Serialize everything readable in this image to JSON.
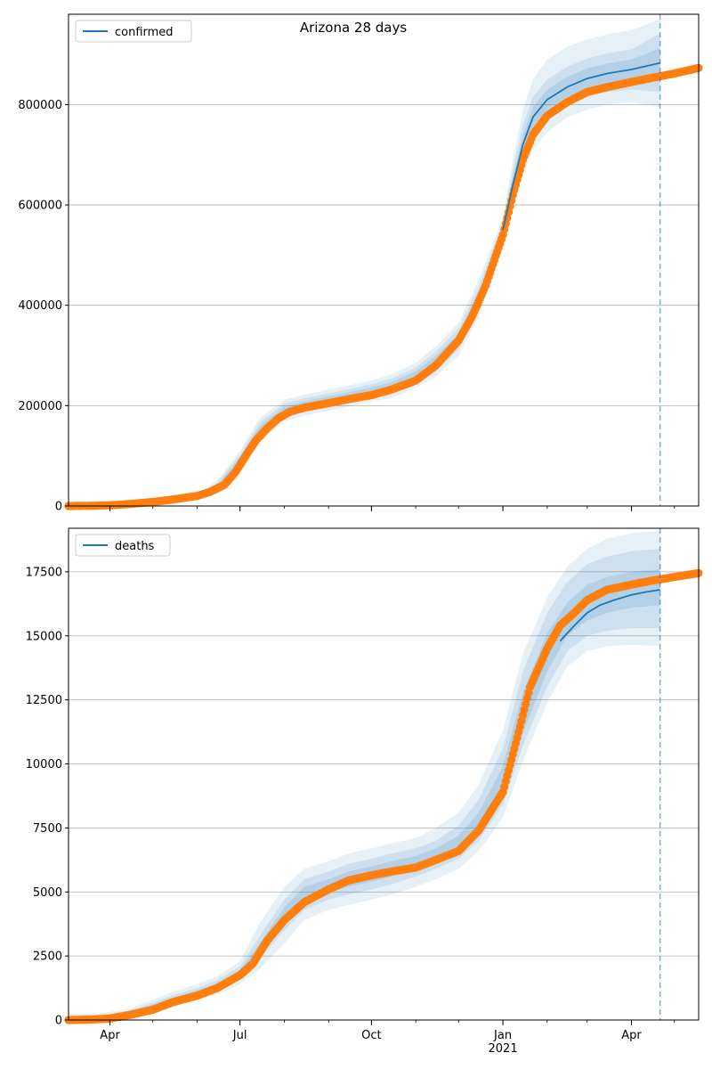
{
  "figure_title": "Arizona 28 days",
  "colors": {
    "model_line": "#1f77b4",
    "band": "#1f77b4",
    "observed": "#ff7f0e",
    "grid": "#b0b0b0",
    "forecast_line": "#1f77b4"
  },
  "chart_data": [
    {
      "type": "line",
      "title": "Arizona 28 days",
      "legend": {
        "entries": [
          "confirmed"
        ],
        "placement": "top-left"
      },
      "x_axis": {
        "type": "date",
        "ticks": [
          "2020-04-01",
          "2020-07-01",
          "2020-10-01",
          "2021-01-01",
          "2021-04-01"
        ],
        "tick_labels": [
          "Apr",
          "Jul",
          "Oct",
          "Jan",
          "Apr"
        ],
        "range": [
          "2020-03-03",
          "2021-05-18"
        ]
      },
      "y_axis": {
        "ticks": [
          0,
          200000,
          400000,
          600000,
          800000
        ],
        "tick_labels": [
          "0",
          "200000",
          "400000",
          "600000",
          "800000"
        ],
        "range": [
          0,
          980000
        ]
      },
      "grid": "y-only",
      "forecast_start": "2021-04-21",
      "model_date_range": [
        "2021-01-01",
        "2021-04-21"
      ],
      "series": [
        {
          "name": "confirmed",
          "style": "line",
          "x": [
            "2021-01-01",
            "2021-01-08",
            "2021-01-15",
            "2021-01-22",
            "2021-02-01",
            "2021-02-15",
            "2021-03-01",
            "2021-03-15",
            "2021-04-01",
            "2021-04-21"
          ],
          "y": [
            550000,
            640000,
            720000,
            775000,
            810000,
            835000,
            852000,
            862000,
            870000,
            883000
          ],
          "bands": [
            {
              "lower": [
                525000,
                600000,
                660000,
                710000,
                745000,
                775000,
                790000,
                800000,
                805000,
                795000
              ],
              "upper": [
                575000,
                690000,
                790000,
                850000,
                890000,
                915000,
                930000,
                940000,
                948000,
                970000
              ]
            },
            {
              "lower": [
                535000,
                615000,
                685000,
                735000,
                770000,
                798000,
                815000,
                825000,
                830000,
                825000
              ],
              "upper": [
                565000,
                670000,
                760000,
                815000,
                850000,
                875000,
                892000,
                902000,
                910000,
                942000
              ]
            },
            {
              "lower": [
                542000,
                628000,
                703000,
                755000,
                790000,
                815000,
                833000,
                843000,
                850000,
                855000
              ],
              "upper": [
                558000,
                655000,
                738000,
                795000,
                830000,
                855000,
                872000,
                882000,
                890000,
                912000
              ]
            }
          ],
          "band_note_dates": [
            "2021-01-01",
            "2021-01-08",
            "2021-01-15",
            "2021-01-22",
            "2021-02-01",
            "2021-02-15",
            "2021-03-01",
            "2021-03-15",
            "2021-04-01",
            "2021-04-21"
          ],
          "historical_band": {
            "x": [
              "2020-06-01",
              "2020-06-15",
              "2020-07-01",
              "2020-07-15",
              "2020-08-01",
              "2020-08-15",
              "2020-09-01",
              "2020-09-15",
              "2020-10-01",
              "2020-10-15",
              "2020-11-01",
              "2020-11-15",
              "2020-12-01",
              "2020-12-15",
              "2021-01-01"
            ],
            "lower": [
              14000,
              26000,
              72000,
              130000,
              168000,
              180000,
              190000,
              198000,
              208000,
              215000,
              235000,
              258000,
              300000,
              375000,
              525000
            ],
            "upper": [
              24000,
              50000,
              110000,
              175000,
              212000,
              222000,
              232000,
              240000,
              250000,
              262000,
              285000,
              318000,
              365000,
              450000,
              575000
            ]
          }
        },
        {
          "name": "observed",
          "style": "markers",
          "x": [
            "2020-03-03",
            "2020-03-20",
            "2020-04-01",
            "2020-04-15",
            "2020-05-01",
            "2020-05-15",
            "2020-06-01",
            "2020-06-10",
            "2020-06-20",
            "2020-06-28",
            "2020-07-05",
            "2020-07-12",
            "2020-07-20",
            "2020-07-28",
            "2020-08-05",
            "2020-08-15",
            "2020-09-01",
            "2020-09-15",
            "2020-10-01",
            "2020-10-15",
            "2020-11-01",
            "2020-11-15",
            "2020-12-01",
            "2020-12-10",
            "2020-12-20",
            "2021-01-01",
            "2021-01-08",
            "2021-01-15",
            "2021-01-22",
            "2021-02-01",
            "2021-02-15",
            "2021-03-01",
            "2021-03-15",
            "2021-04-01",
            "2021-04-15",
            "2021-05-01",
            "2021-05-18"
          ],
          "y": [
            0,
            500,
            1500,
            4000,
            8000,
            13000,
            20000,
            28000,
            42000,
            68000,
            100000,
            130000,
            155000,
            175000,
            188000,
            196000,
            205000,
            213000,
            221000,
            232000,
            250000,
            280000,
            330000,
            375000,
            440000,
            540000,
            620000,
            690000,
            740000,
            778000,
            805000,
            825000,
            835000,
            845000,
            853000,
            862000,
            873000
          ]
        }
      ]
    },
    {
      "type": "line",
      "legend": {
        "entries": [
          "deaths"
        ],
        "placement": "top-left"
      },
      "x_axis": {
        "type": "date",
        "ticks": [
          "2020-04-01",
          "2020-07-01",
          "2020-10-01",
          "2021-01-01",
          "2021-04-01"
        ],
        "tick_labels": [
          "Apr",
          "Jul",
          "Oct",
          "Jan",
          "Apr"
        ],
        "year_label": "2021",
        "range": [
          "2020-03-03",
          "2021-05-18"
        ]
      },
      "y_axis": {
        "ticks": [
          0,
          2500,
          5000,
          7500,
          10000,
          12500,
          15000,
          17500
        ],
        "tick_labels": [
          "0",
          "2500",
          "5000",
          "7500",
          "10000",
          "12500",
          "15000",
          "17500"
        ],
        "range": [
          0,
          19200
        ]
      },
      "grid": "y-only",
      "forecast_start": "2021-04-21",
      "series": [
        {
          "name": "deaths",
          "style": "line",
          "x": [
            "2021-02-10",
            "2021-02-20",
            "2021-03-01",
            "2021-03-10",
            "2021-03-20",
            "2021-04-01",
            "2021-04-10",
            "2021-04-21"
          ],
          "y": [
            14800,
            15400,
            15900,
            16200,
            16400,
            16600,
            16700,
            16800
          ],
          "bands": [
            {
              "x": [
                "2020-03-03",
                "2020-03-25",
                "2020-04-15",
                "2020-05-01",
                "2020-05-15",
                "2020-06-01",
                "2020-06-15",
                "2020-07-01",
                "2020-07-15",
                "2020-08-01",
                "2020-08-15",
                "2020-09-01",
                "2020-09-15",
                "2020-10-01",
                "2020-10-15",
                "2020-11-01",
                "2020-11-15",
                "2020-12-01",
                "2020-12-15",
                "2021-01-01",
                "2021-01-15",
                "2021-02-01",
                "2021-02-15",
                "2021-03-01",
                "2021-03-15",
                "2021-04-01",
                "2021-04-21"
              ],
              "lower": [
                0,
                0,
                100,
                300,
                500,
                800,
                1000,
                1400,
                2000,
                3000,
                3900,
                4300,
                4500,
                4700,
                4900,
                5200,
                5500,
                5900,
                6600,
                7900,
                10100,
                12400,
                13800,
                14400,
                14600,
                14650,
                14600
              ],
              "upper": [
                250,
                250,
                450,
                800,
                1100,
                1400,
                1700,
                2300,
                3800,
                5200,
                5900,
                6200,
                6500,
                6700,
                6900,
                7100,
                7500,
                8100,
                9200,
                11300,
                14300,
                16500,
                17700,
                18400,
                18800,
                19000,
                19100
              ]
            },
            {
              "x": [
                "2020-03-03",
                "2020-03-25",
                "2020-04-15",
                "2020-05-01",
                "2020-05-15",
                "2020-06-01",
                "2020-06-15",
                "2020-07-01",
                "2020-07-15",
                "2020-08-01",
                "2020-08-15",
                "2020-09-01",
                "2020-09-15",
                "2020-10-01",
                "2020-10-15",
                "2020-11-01",
                "2020-11-15",
                "2020-12-01",
                "2020-12-15",
                "2021-01-01",
                "2021-01-15",
                "2021-02-01",
                "2021-02-15",
                "2021-03-01",
                "2021-03-15",
                "2021-04-01",
                "2021-04-21"
              ],
              "lower": [
                0,
                40,
                160,
                400,
                620,
                920,
                1150,
                1600,
                2400,
                3500,
                4300,
                4700,
                4900,
                5100,
                5300,
                5600,
                5900,
                6300,
                7000,
                8400,
                10700,
                13000,
                14400,
                15000,
                15200,
                15300,
                15300
              ],
              "upper": [
                150,
                150,
                380,
                680,
                960,
                1250,
                1550,
                2100,
                3300,
                4700,
                5500,
                5800,
                6100,
                6300,
                6500,
                6700,
                7000,
                7600,
                8600,
                10600,
                13600,
                15900,
                17100,
                17800,
                18100,
                18300,
                18400
              ]
            },
            {
              "x": [
                "2020-03-03",
                "2020-03-25",
                "2020-04-15",
                "2020-05-01",
                "2020-05-15",
                "2020-06-01",
                "2020-06-15",
                "2020-07-01",
                "2020-07-15",
                "2020-08-01",
                "2020-08-15",
                "2020-09-01",
                "2020-09-15",
                "2020-10-01",
                "2020-10-15",
                "2020-11-01",
                "2020-11-15",
                "2020-12-01",
                "2020-12-15",
                "2021-01-01",
                "2021-01-15",
                "2021-02-01",
                "2021-02-15",
                "2021-03-01",
                "2021-03-15",
                "2021-04-01",
                "2021-04-21"
              ],
              "lower": [
                0,
                60,
                200,
                460,
                700,
                1000,
                1250,
                1700,
                2600,
                3800,
                4600,
                5000,
                5200,
                5400,
                5600,
                5900,
                6200,
                6600,
                7400,
                8800,
                11200,
                13600,
                15000,
                15600,
                15900,
                16100,
                16200
              ],
              "upper": [
                100,
                100,
                320,
                600,
                860,
                1150,
                1420,
                1950,
                3000,
                4400,
                5200,
                5500,
                5800,
                6000,
                6200,
                6400,
                6700,
                7200,
                8100,
                9900,
                12800,
                15100,
                16300,
                17000,
                17300,
                17500,
                17600
              ]
            }
          ]
        },
        {
          "name": "observed",
          "style": "markers",
          "x": [
            "2020-03-03",
            "2020-03-20",
            "2020-04-01",
            "2020-04-15",
            "2020-05-01",
            "2020-05-15",
            "2020-06-01",
            "2020-06-15",
            "2020-07-01",
            "2020-07-10",
            "2020-07-20",
            "2020-08-01",
            "2020-08-15",
            "2020-09-01",
            "2020-09-15",
            "2020-10-01",
            "2020-10-15",
            "2020-11-01",
            "2020-11-15",
            "2020-12-01",
            "2020-12-15",
            "2021-01-01",
            "2021-01-10",
            "2021-01-20",
            "2021-02-01",
            "2021-02-10",
            "2021-02-20",
            "2021-03-01",
            "2021-03-15",
            "2021-04-01",
            "2021-04-15",
            "2021-05-01",
            "2021-05-18"
          ],
          "y": [
            0,
            20,
            60,
            200,
            400,
            700,
            950,
            1250,
            1750,
            2200,
            3100,
            3900,
            4600,
            5100,
            5450,
            5650,
            5800,
            5950,
            6250,
            6600,
            7400,
            8900,
            10800,
            13000,
            14500,
            15400,
            15900,
            16400,
            16800,
            17000,
            17150,
            17300,
            17450
          ]
        }
      ]
    }
  ]
}
